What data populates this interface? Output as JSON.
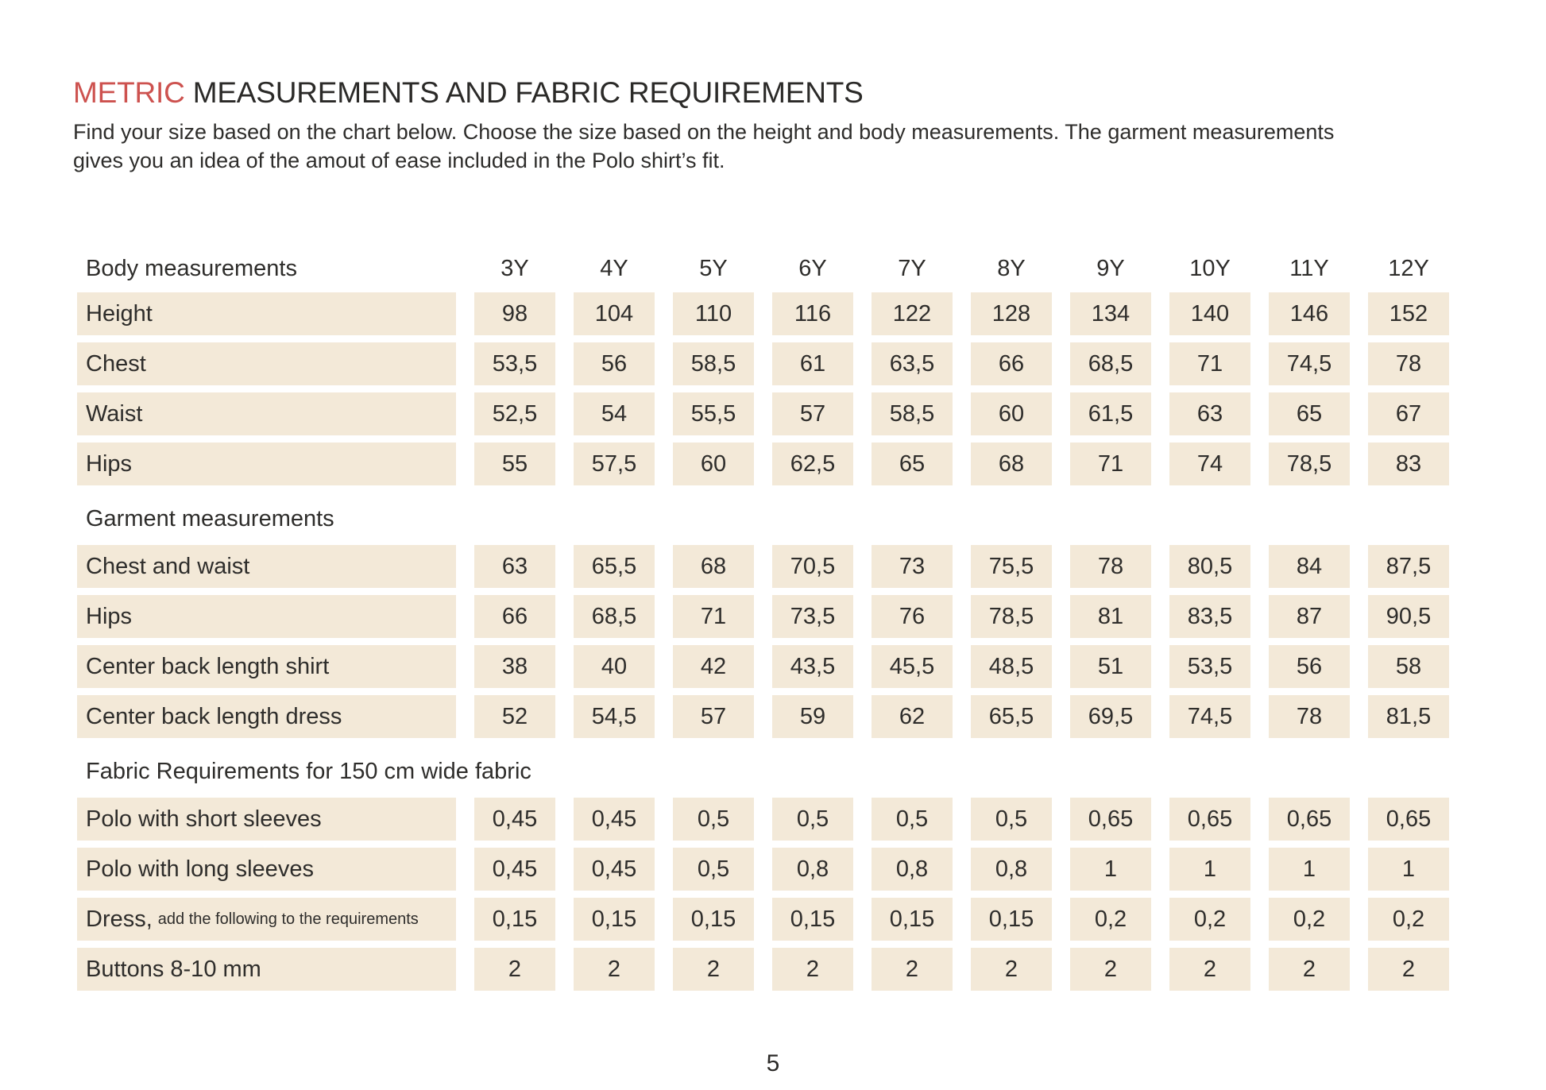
{
  "colors": {
    "accent_red": "#cd524f",
    "cell_beige": "#f3e9d8",
    "text_ink": "#2e2d2b"
  },
  "header": {
    "title_accent": "METRIC",
    "title_rest": " MEASUREMENTS AND FABRIC REQUIREMENTS",
    "intro_line1": "Find your size based on the chart below. Choose the size based on the height and body measurements. The garment measurements",
    "intro_line2": "gives you an idea of the amout of ease included in the Polo shirt’s fit."
  },
  "footer": {
    "page_number": "5"
  },
  "table": {
    "sizes": [
      "3Y",
      "4Y",
      "5Y",
      "6Y",
      "7Y",
      "8Y",
      "9Y",
      "10Y",
      "11Y",
      "12Y"
    ],
    "sections": [
      {
        "heading": "Body measurements",
        "rows": [
          {
            "label": "Height",
            "values": [
              "98",
              "104",
              "110",
              "116",
              "122",
              "128",
              "134",
              "140",
              "146",
              "152"
            ]
          },
          {
            "label": "Chest",
            "values": [
              "53,5",
              "56",
              "58,5",
              "61",
              "63,5",
              "66",
              "68,5",
              "71",
              "74,5",
              "78"
            ]
          },
          {
            "label": "Waist",
            "values": [
              "52,5",
              "54",
              "55,5",
              "57",
              "58,5",
              "60",
              "61,5",
              "63",
              "65",
              "67"
            ]
          },
          {
            "label": "Hips",
            "values": [
              "55",
              "57,5",
              "60",
              "62,5",
              "65",
              "68",
              "71",
              "74",
              "78,5",
              "83"
            ]
          }
        ]
      },
      {
        "heading": "Garment measurements",
        "rows": [
          {
            "label": "Chest and waist",
            "values": [
              "63",
              "65,5",
              "68",
              "70,5",
              "73",
              "75,5",
              "78",
              "80,5",
              "84",
              "87,5"
            ]
          },
          {
            "label": "Hips",
            "values": [
              "66",
              "68,5",
              "71",
              "73,5",
              "76",
              "78,5",
              "81",
              "83,5",
              "87",
              "90,5"
            ]
          },
          {
            "label": "Center back length shirt",
            "values": [
              "38",
              "40",
              "42",
              "43,5",
              "45,5",
              "48,5",
              "51",
              "53,5",
              "56",
              "58"
            ]
          },
          {
            "label": "Center back length dress",
            "values": [
              "52",
              "54,5",
              "57",
              "59",
              "62",
              "65,5",
              "69,5",
              "74,5",
              "78",
              "81,5"
            ]
          }
        ]
      },
      {
        "heading": "Fabric Requirements for 150 cm wide fabric",
        "rows": [
          {
            "label": "Polo with short sleeves",
            "values": [
              "0,45",
              "0,45",
              "0,5",
              "0,5",
              "0,5",
              "0,5",
              "0,65",
              "0,65",
              "0,65",
              "0,65"
            ]
          },
          {
            "label": "Polo with long sleeves",
            "values": [
              "0,45",
              "0,45",
              "0,5",
              "0,8",
              "0,8",
              "0,8",
              "1",
              "1",
              "1",
              "1"
            ]
          },
          {
            "label": "Dress,",
            "label_suffix": "add the following to the requirements",
            "values": [
              "0,15",
              "0,15",
              "0,15",
              "0,15",
              "0,15",
              "0,15",
              "0,2",
              "0,2",
              "0,2",
              "0,2"
            ]
          },
          {
            "label": "Buttons 8-10 mm",
            "values": [
              "2",
              "2",
              "2",
              "2",
              "2",
              "2",
              "2",
              "2",
              "2",
              "2"
            ]
          }
        ]
      }
    ]
  }
}
